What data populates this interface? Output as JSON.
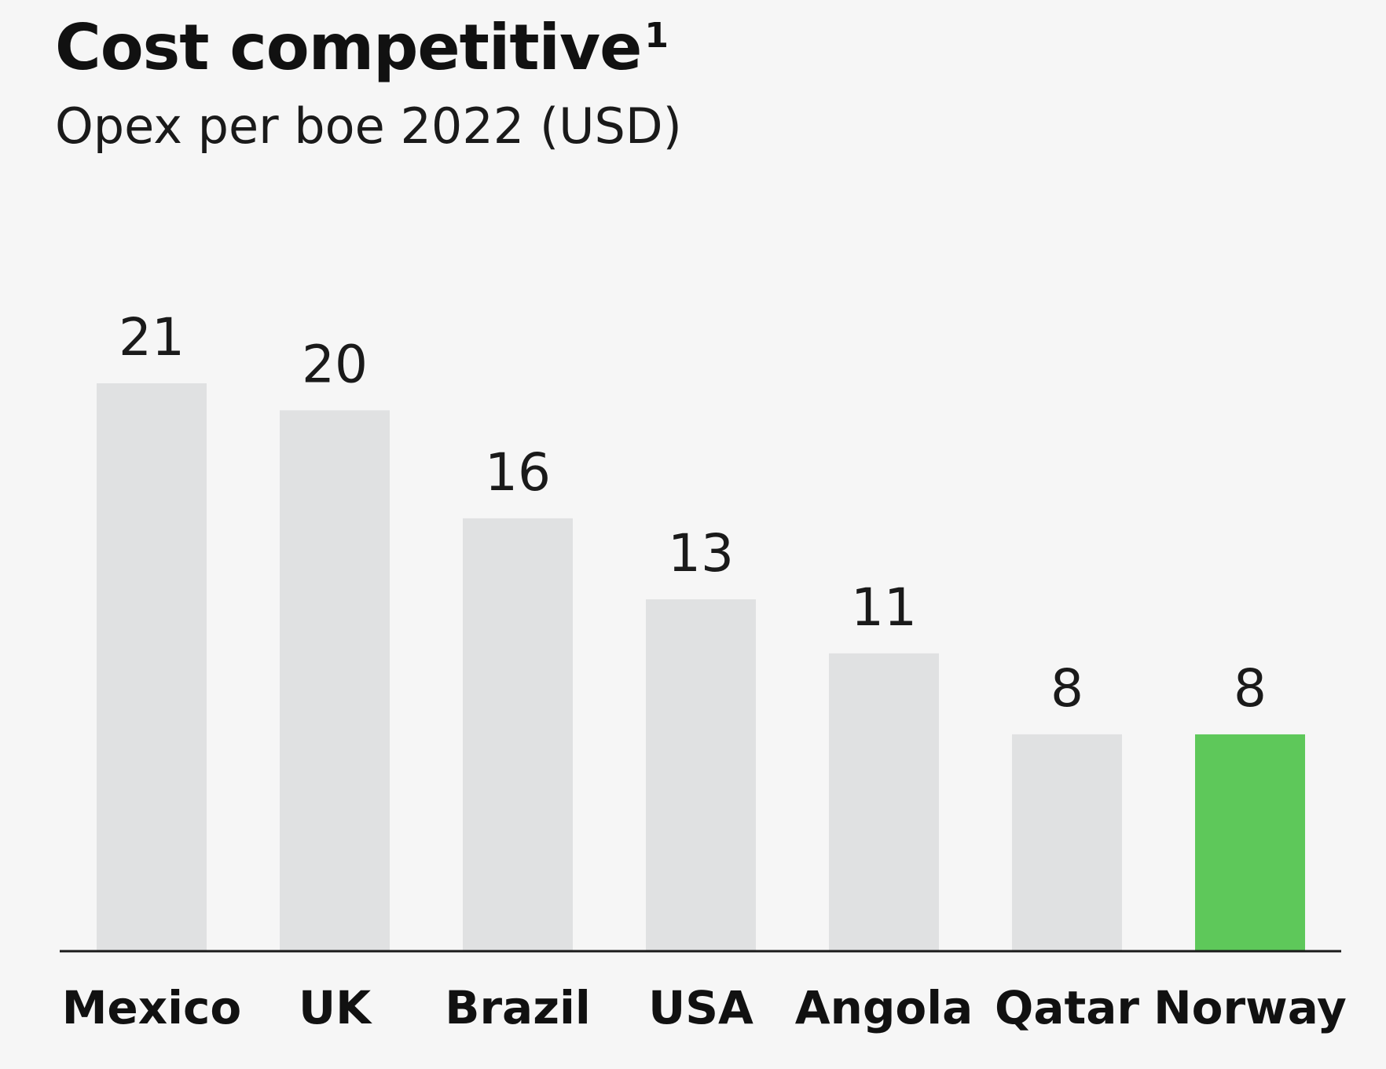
{
  "chart_data": {
    "type": "bar",
    "title": "Cost competitive",
    "title_superscript": "1",
    "subtitle": "Opex per boe 2022 (USD)",
    "categories": [
      "Mexico",
      "UK",
      "Brazil",
      "USA",
      "Angola",
      "Qatar",
      "Norway"
    ],
    "values": [
      21,
      20,
      16,
      13,
      11,
      8,
      8
    ],
    "value_labels": [
      "21",
      "20",
      "16",
      "13",
      "11",
      "8",
      "8"
    ],
    "highlight_category": "Norway",
    "ylim": [
      0,
      21
    ],
    "xlabel": "",
    "ylabel": "",
    "grid": false,
    "colors": {
      "bar": "#e0e1e2",
      "highlight": "#5ec85a",
      "axis": "#1a1a1a",
      "background": "#f6f6f6"
    }
  }
}
